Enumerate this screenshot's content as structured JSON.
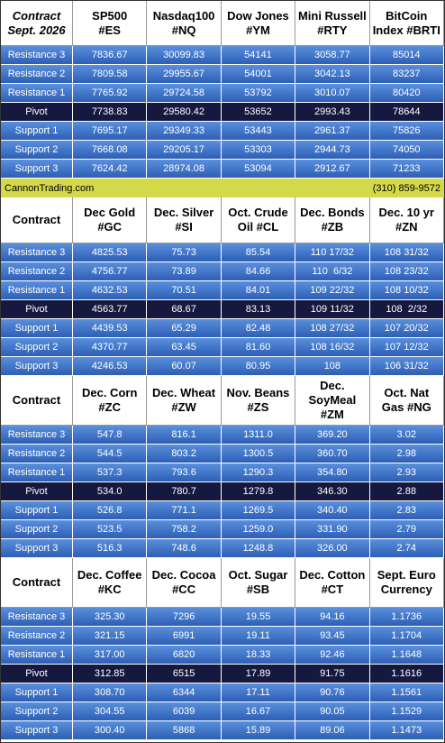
{
  "sections": [
    {
      "header": [
        [
          "Contract",
          "Sept. 2026"
        ],
        [
          "SP500",
          "#ES"
        ],
        [
          "Nasdaq100",
          "#NQ"
        ],
        [
          "Dow Jones",
          "#YM"
        ],
        [
          "Mini Russell",
          "#RTY"
        ],
        [
          "BitCoin",
          "Index #BRTI"
        ]
      ],
      "rows": [
        [
          "Resistance 3",
          "7836.67",
          "30099.83",
          "54141",
          "3058.77",
          "85014"
        ],
        [
          "Resistance 2",
          "7809.58",
          "29955.67",
          "54001",
          "3042.13",
          "83237"
        ],
        [
          "Resistance 1",
          "7765.92",
          "29724.58",
          "53792",
          "3010.07",
          "80420"
        ],
        [
          "Pivot",
          "7738.83",
          "29580.42",
          "53652",
          "2993.43",
          "78644"
        ],
        [
          "Support 1",
          "7695.17",
          "29349.33",
          "53443",
          "2961.37",
          "75826"
        ],
        [
          "Support 2",
          "7668.08",
          "29205.17",
          "53303",
          "2944.73",
          "74050"
        ],
        [
          "Support 3",
          "7624.42",
          "28974.08",
          "53094",
          "2912.67",
          "71233"
        ]
      ]
    },
    {
      "header": [
        [
          "Contract"
        ],
        [
          "Dec Gold",
          "#GC"
        ],
        [
          "Dec. Silver",
          "#SI"
        ],
        [
          "Oct. Crude",
          "Oil #CL"
        ],
        [
          "Dec. Bonds",
          "#ZB"
        ],
        [
          "Dec. 10 yr",
          "#ZN"
        ]
      ],
      "rows": [
        [
          "Resistance 3",
          "4825.53",
          "75.73",
          "85.54",
          "110 17/32",
          "108 31/32"
        ],
        [
          "Resistance 2",
          "4756.77",
          "73.89",
          "84.66",
          "110  6/32",
          "108 23/32"
        ],
        [
          "Resistance 1",
          "4632.53",
          "70.51",
          "84.01",
          "109 22/32",
          "108 10/32"
        ],
        [
          "Pivot",
          "4563.77",
          "68.67",
          "83.13",
          "109 11/32",
          "108  2/32"
        ],
        [
          "Support 1",
          "4439.53",
          "65.29",
          "82.48",
          "108 27/32",
          "107 20/32"
        ],
        [
          "Support 2",
          "4370.77",
          "63.45",
          "81.60",
          "108 16/32",
          "107 12/32"
        ],
        [
          "Support 3",
          "4246.53",
          "60.07",
          "80.95",
          "108",
          "106 31/32"
        ]
      ]
    },
    {
      "header": [
        [
          "Contract"
        ],
        [
          "Dec. Corn",
          "#ZC"
        ],
        [
          "Dec.  Wheat",
          "#ZW"
        ],
        [
          "Nov. Beans",
          "#ZS"
        ],
        [
          "Dec.",
          "SoyMeal",
          "#ZM"
        ],
        [
          "Oct. Nat",
          "Gas #NG"
        ]
      ],
      "rows": [
        [
          "Resistance 3",
          "547.8",
          "816.1",
          "1311.0",
          "369.20",
          "3.02"
        ],
        [
          "Resistance 2",
          "544.5",
          "803.2",
          "1300.5",
          "360.70",
          "2.98"
        ],
        [
          "Resistance 1",
          "537.3",
          "793.6",
          "1290.3",
          "354.80",
          "2.93"
        ],
        [
          "Pivot",
          "534.0",
          "780.7",
          "1279.8",
          "346.30",
          "2.88"
        ],
        [
          "Support 1",
          "526.8",
          "771.1",
          "1269.5",
          "340.40",
          "2.83"
        ],
        [
          "Support 2",
          "523.5",
          "758.2",
          "1259.0",
          "331.90",
          "2.79"
        ],
        [
          "Support 3",
          "516.3",
          "748.6",
          "1248.8",
          "326.00",
          "2.74"
        ]
      ]
    },
    {
      "header": [
        [
          "Contract"
        ],
        [
          "Dec. Coffee",
          "#KC"
        ],
        [
          "Dec. Cocoa",
          "#CC"
        ],
        [
          "Oct. Sugar",
          "#SB"
        ],
        [
          "Dec. Cotton",
          "#CT"
        ],
        [
          "Sept. Euro",
          "Currency"
        ]
      ],
      "rows": [
        [
          "Resistance 3",
          "325.30",
          "7296",
          "19.55",
          "94.16",
          "1.1736"
        ],
        [
          "Resistance 2",
          "321.15",
          "6991",
          "19.11",
          "93.45",
          "1.1704"
        ],
        [
          "Resistance 1",
          "317.00",
          "6820",
          "18.33",
          "92.46",
          "1.1648"
        ],
        [
          "Pivot",
          "312.85",
          "6515",
          "17.89",
          "91.75",
          "1.1616"
        ],
        [
          "Support 1",
          "308.70",
          "6344",
          "17.11",
          "90.76",
          "1.1561"
        ],
        [
          "Support 2",
          "304.55",
          "6039",
          "16.67",
          "90.05",
          "1.1529"
        ],
        [
          "Support 3",
          "300.40",
          "5868",
          "15.89",
          "89.06",
          "1.1473"
        ]
      ]
    }
  ],
  "footer": {
    "site": "CannonTrading.com",
    "phone": "(310) 859-9572"
  }
}
